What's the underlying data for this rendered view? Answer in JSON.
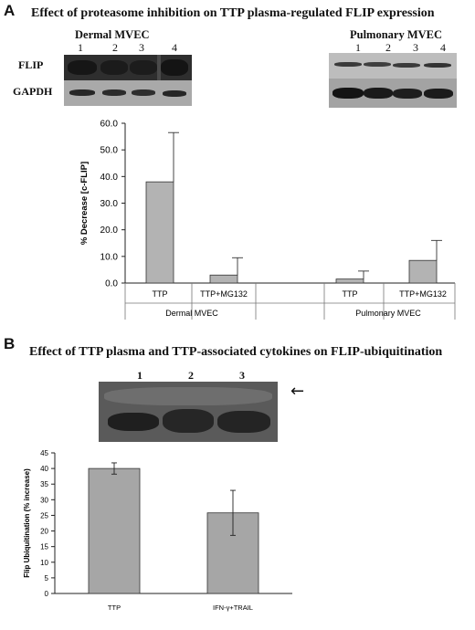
{
  "panel_a": {
    "letter": "A",
    "title": "Effect of proteasome inhibition on TTP plasma-regulated FLIP expression",
    "blots": {
      "dermal_title": "Dermal MVEC",
      "pulmonary_title": "Pulmonary MVEC",
      "row_labels": [
        "FLIP",
        "GAPDH"
      ],
      "dermal_lanes": [
        "1",
        "2",
        "3",
        "4"
      ],
      "pulmonary_lanes": [
        "1",
        "2",
        "3",
        "4"
      ]
    }
  },
  "panel_b": {
    "letter": "B",
    "title": "Effect of TTP plasma and TTP-associated cytokines on FLIP-ubiquitination",
    "lanes": [
      "1",
      "2",
      "3"
    ],
    "arrow": "←"
  },
  "chart_data": [
    {
      "type": "bar",
      "ylabel": "% Decrease [c-FLIP]",
      "ylim": [
        0,
        60
      ],
      "yticks": [
        "0.0",
        "10.0",
        "20.0",
        "30.0",
        "40.0",
        "50.0",
        "60.0"
      ],
      "categories": [
        "TTP",
        "TTP+MG132",
        "TTP",
        "TTP+MG132"
      ],
      "groups": [
        "Dermal MVEC",
        "Pulmonary MVEC"
      ],
      "group_of_category": [
        0,
        0,
        1,
        1
      ],
      "values": [
        38.0,
        3.0,
        1.5,
        8.5
      ],
      "errors": [
        18.5,
        6.5,
        3.0,
        7.5
      ],
      "bar_color": "#b3b3b3",
      "grid": false
    },
    {
      "type": "bar",
      "ylabel": "Flip Ubiquitination (% increase)",
      "ylim": [
        0,
        45
      ],
      "yticks": [
        "0",
        "5",
        "10",
        "15",
        "20",
        "25",
        "30",
        "35",
        "40",
        "45"
      ],
      "categories": [
        "TTP",
        "IFN-γ+TRAIL"
      ],
      "values": [
        40,
        25.8
      ],
      "errors": [
        1.8,
        7.2
      ],
      "bar_color": "#a6a6a6",
      "grid": false
    }
  ]
}
